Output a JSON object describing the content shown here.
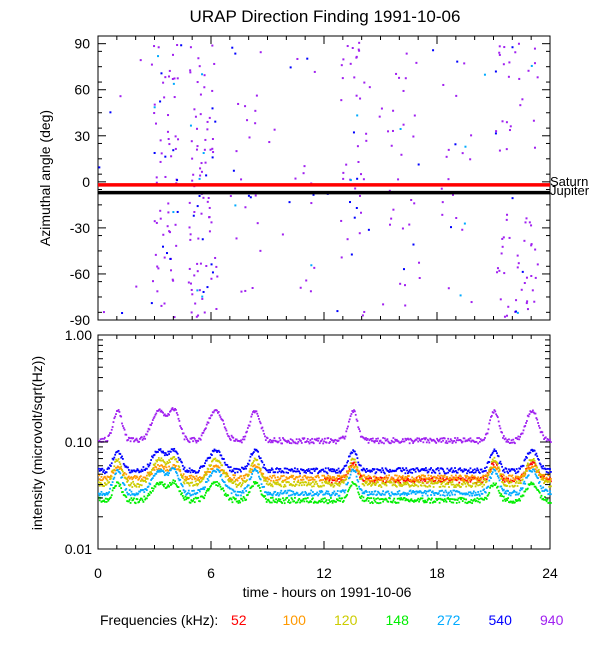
{
  "chart_data": [
    {
      "panel": "top",
      "type": "scatter",
      "title": "URAP Direction Finding  1991-10-06",
      "xlabel": "",
      "ylabel": "Azimuthal angle (deg)",
      "xlim": [
        0,
        24
      ],
      "ylim": [
        -90,
        95
      ],
      "xticks": [
        0,
        6,
        12,
        18,
        24
      ],
      "yticks": [
        90,
        60,
        30,
        0,
        -30,
        -60,
        -90
      ],
      "ytick_labels": [
        "90",
        "60",
        "30",
        "0",
        "-30",
        "-60",
        "-90"
      ],
      "reference_lines": [
        {
          "name": "Saturn",
          "y": -2,
          "color": "#ff0000"
        },
        {
          "name": "Jupiter",
          "y": -7,
          "color": "#000000"
        }
      ],
      "series_colors": {
        "940": "#a020f0",
        "540": "#0000ff",
        "272": "#00aaff"
      },
      "scatter_description": "sparse scattered azimuth measurements, mostly 940 kHz (purple), denser clusters near 3-4 h, 5-6 h, 13-14 h and 21-23 h"
    },
    {
      "panel": "bottom",
      "type": "line",
      "xlabel": "time - hours on 1991-10-06",
      "ylabel": "intensity (microvolt/sqrt(Hz))",
      "xlim": [
        0,
        24
      ],
      "ylim": [
        0.01,
        1.0
      ],
      "yscale": "log",
      "xticks": [
        0,
        6,
        12,
        18,
        24
      ],
      "xtick_labels": [
        "0",
        "6",
        "12",
        "18",
        "24"
      ],
      "yticks": [
        1.0,
        0.1,
        0.01
      ],
      "ytick_labels": [
        "1.00",
        "0.10",
        "0.01"
      ],
      "series": [
        {
          "name": "52",
          "color": "#ff0000",
          "baseline": 0.045,
          "x_range": [
            12,
            24
          ]
        },
        {
          "name": "100",
          "color": "#ff9900",
          "baseline": 0.047
        },
        {
          "name": "120",
          "color": "#cccc00",
          "baseline": 0.041
        },
        {
          "name": "148",
          "color": "#00ee00",
          "baseline": 0.029
        },
        {
          "name": "272",
          "color": "#00aaff",
          "baseline": 0.034
        },
        {
          "name": "540",
          "color": "#0000ff",
          "baseline": 0.055
        },
        {
          "name": "940",
          "color": "#a020f0",
          "baseline": 0.105
        }
      ]
    }
  ],
  "legend": {
    "label": "Frequencies (kHz):",
    "items": [
      {
        "label": "52",
        "color": "#ff0000"
      },
      {
        "label": "100",
        "color": "#ff9900"
      },
      {
        "label": "120",
        "color": "#cccc00"
      },
      {
        "label": "148",
        "color": "#00ee00"
      },
      {
        "label": "272",
        "color": "#00aaff"
      },
      {
        "label": "540",
        "color": "#0000ff"
      },
      {
        "label": "940",
        "color": "#a020f0"
      }
    ]
  }
}
